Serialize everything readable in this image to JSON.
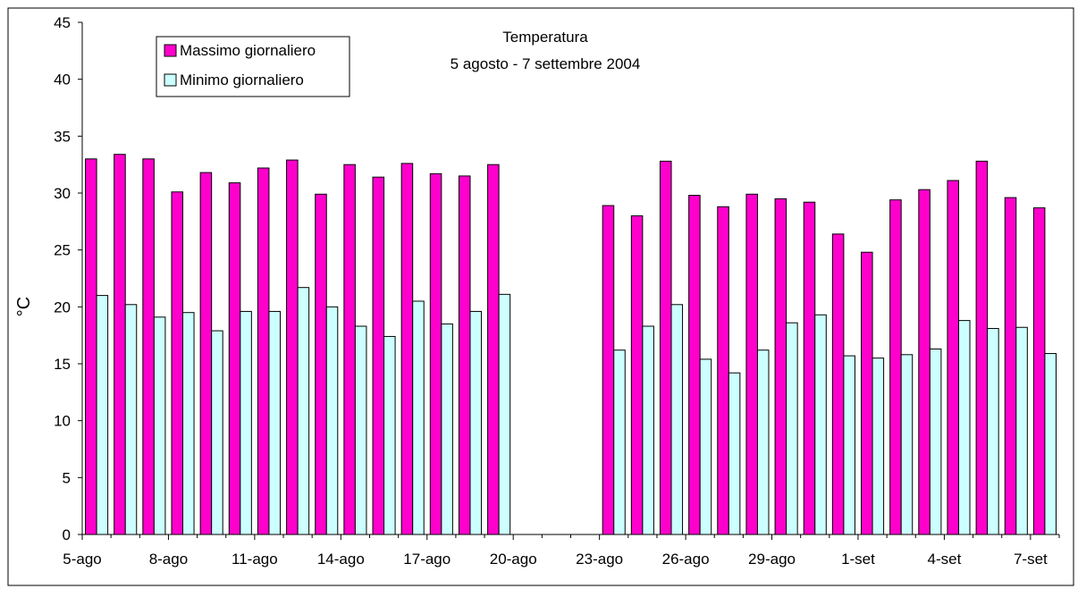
{
  "chart_data": {
    "type": "bar",
    "title": "Temperatura",
    "subtitle": "5 agosto - 7 settembre 2004",
    "xlabel": "",
    "ylabel": "°C",
    "ylim": [
      0,
      45
    ],
    "yticks": [
      0,
      5,
      10,
      15,
      20,
      25,
      30,
      35,
      40,
      45
    ],
    "grid": false,
    "legend_position": "top-left",
    "categories": [
      "5-ago",
      "6-ago",
      "7-ago",
      "8-ago",
      "9-ago",
      "10-ago",
      "11-ago",
      "12-ago",
      "13-ago",
      "14-ago",
      "15-ago",
      "16-ago",
      "17-ago",
      "18-ago",
      "19-ago",
      "20-ago",
      "21-ago",
      "22-ago",
      "23-ago",
      "24-ago",
      "25-ago",
      "26-ago",
      "27-ago",
      "28-ago",
      "29-ago",
      "30-ago",
      "31-ago",
      "1-set",
      "2-set",
      "3-set",
      "4-set",
      "5-set",
      "6-set",
      "7-set"
    ],
    "tick_labels": [
      "5-ago",
      "8-ago",
      "11-ago",
      "14-ago",
      "17-ago",
      "20-ago",
      "23-ago",
      "26-ago",
      "29-ago",
      "1-set",
      "4-set",
      "7-set"
    ],
    "series": [
      {
        "name": "Massimo giornaliero",
        "color": "#FF00CC",
        "values": [
          33.0,
          33.4,
          33.0,
          30.1,
          31.8,
          30.9,
          32.2,
          32.9,
          29.9,
          32.5,
          31.4,
          32.6,
          31.7,
          31.5,
          32.5,
          null,
          null,
          null,
          28.9,
          28.0,
          32.8,
          29.8,
          28.8,
          29.9,
          29.5,
          29.2,
          26.4,
          24.8,
          29.4,
          30.3,
          31.1,
          32.8,
          29.6,
          28.7
        ]
      },
      {
        "name": "Minimo giornaliero",
        "color": "#CCFFFF",
        "values": [
          21.0,
          20.2,
          19.1,
          19.5,
          17.9,
          19.6,
          19.6,
          21.7,
          20.0,
          18.3,
          17.4,
          20.5,
          18.5,
          19.6,
          21.1,
          null,
          null,
          null,
          16.2,
          18.3,
          20.2,
          15.4,
          14.2,
          16.2,
          18.6,
          19.3,
          15.7,
          15.5,
          15.8,
          16.3,
          18.8,
          18.1,
          18.2,
          15.9
        ]
      }
    ]
  }
}
